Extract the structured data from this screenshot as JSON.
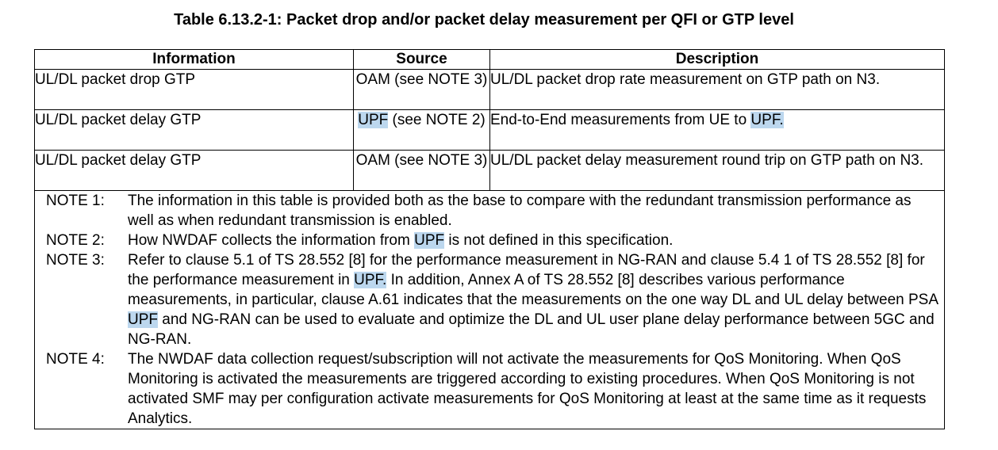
{
  "title": "Table 6.13.2-1: Packet drop and/or packet delay measurement per QFI or GTP level",
  "headers": {
    "information": "Information",
    "source": "Source",
    "description": "Description"
  },
  "rows": [
    {
      "information": "UL/DL packet drop GTP",
      "source": {
        "pre": "OAM (see NOTE 3)",
        "hl": "",
        "post": ""
      },
      "description": {
        "pre": "UL/DL packet drop rate measurement on GTP path on N3.",
        "hl": "",
        "post": ""
      }
    },
    {
      "information": "UL/DL packet delay GTP",
      "source": {
        "pre": "",
        "hl": "UPF",
        "post": " (see NOTE 2)"
      },
      "description": {
        "pre": "End-to-End measurements from UE to ",
        "hl": "UPF.",
        "post": ""
      }
    },
    {
      "information": "UL/DL packet delay GTP",
      "source": {
        "pre": "OAM (see NOTE 3)",
        "hl": "",
        "post": ""
      },
      "description": {
        "pre": "UL/DL packet delay measurement round trip on GTP path on N3.",
        "hl": "",
        "post": ""
      }
    }
  ],
  "notes": [
    {
      "label": "NOTE 1:",
      "t1": "The information in this table is provided both as the base to compare with the redundant transmission performance as well as when redundant transmission is enabled."
    },
    {
      "label": "NOTE 2:",
      "t1": "How NWDAF collects the information from ",
      "h1": "UPF",
      "t2": " is not defined in this specification."
    },
    {
      "label": "NOTE 3:",
      "t1": "Refer to clause 5.1 of TS 28.552 [8] for the performance measurement in NG-RAN and clause 5.4 1 of TS 28.552 [8] for the performance measurement in ",
      "h1": "UPF.",
      "t2": " In addition, Annex A of TS 28.552 [8] describes various performance measurements, in particular, clause A.61 indicates that the measurements on the one way DL and UL delay between PSA ",
      "h2": "UPF",
      "t3": " and NG-RAN can be used to evaluate and optimize the DL and UL user plane delay performance between 5GC and NG-RAN."
    },
    {
      "label": "NOTE 4:",
      "t1": "The NWDAF data collection request/subscription will not activate the measurements for QoS Monitoring. When QoS Monitoring is activated the measurements are triggered according to existing procedures. When QoS Monitoring is not activated SMF may per configuration activate measurements for QoS Monitoring at least at the same time as it requests Analytics."
    }
  ],
  "colors": {
    "highlight": "#bcd7ee",
    "border": "#000000",
    "text": "#000000"
  }
}
